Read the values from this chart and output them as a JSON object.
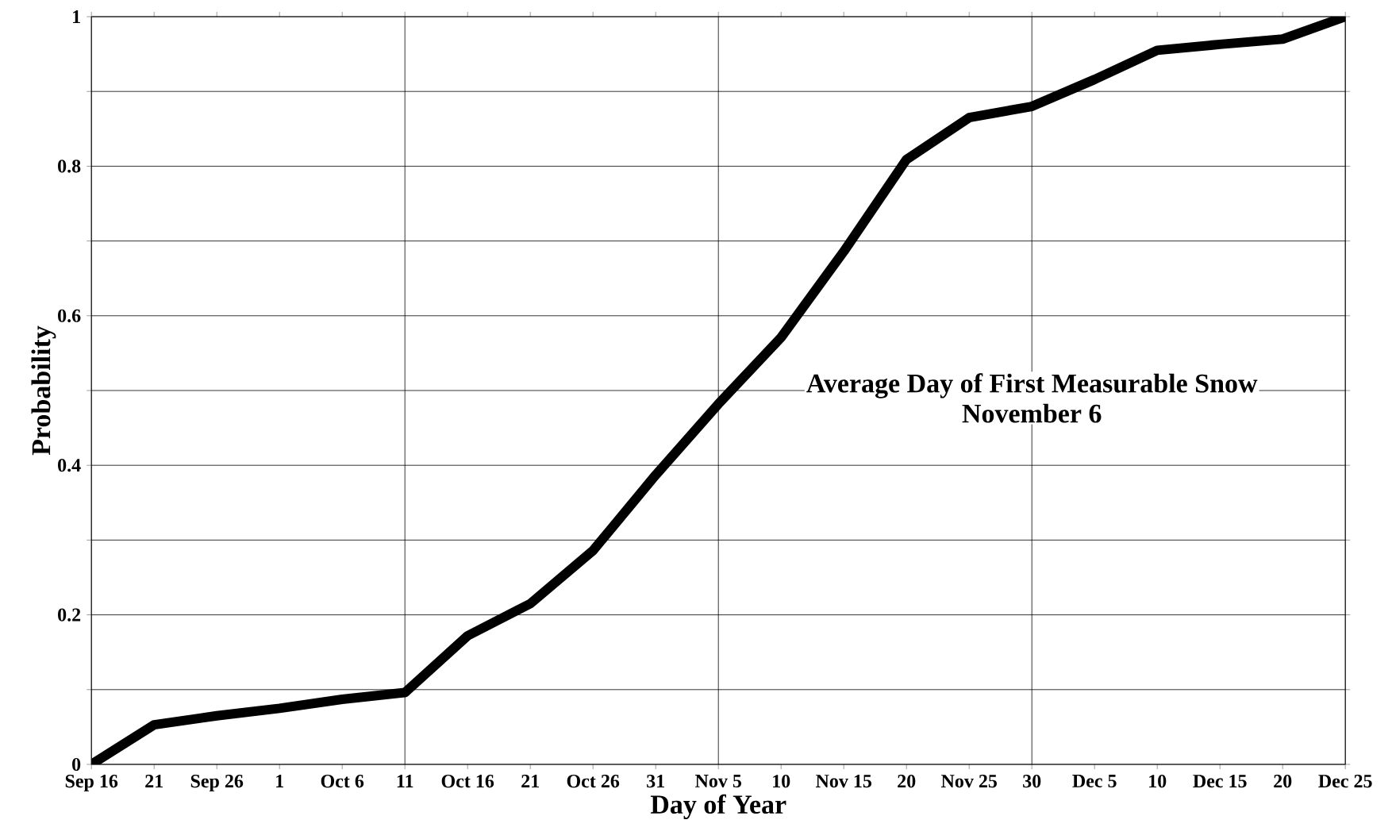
{
  "chart_data": {
    "type": "line",
    "xlabel": "Day of Year",
    "ylabel": "Probability",
    "categories": [
      "Sep 16",
      "21",
      "Sep 26",
      "1",
      "Oct 6",
      "11",
      "Oct 16",
      "21",
      "Oct 26",
      "31",
      "Nov 5",
      "10",
      "Nov 15",
      "20",
      "Nov 25",
      "30",
      "Dec 5",
      "10",
      "Dec 15",
      "20",
      "Dec 25"
    ],
    "series": [
      {
        "color": "#000000",
        "values": [
          0,
          0.053,
          0.065,
          0.075,
          0.087,
          0.096,
          0.172,
          0.215,
          0.286,
          0.387,
          0.482,
          0.571,
          0.686,
          0.809,
          0.865,
          0.88,
          0.916,
          0.955,
          0.963,
          0.97,
          1
        ]
      }
    ],
    "ylim": [
      0,
      1
    ],
    "yticks": [
      0,
      {
        "value": 0.1,
        "label": null
      },
      0.2,
      {
        "value": 0.3,
        "label": null
      },
      0.4,
      {
        "value": 0.5,
        "label": null
      },
      0.6,
      {
        "value": 0.7,
        "label": null
      },
      0.8,
      {
        "value": 0.9,
        "label": null
      },
      1
    ],
    "grid": true,
    "marker": "none",
    "line_style": "solid",
    "annotations": [
      "Average Day of First Measurable Snow",
      "November 6"
    ]
  }
}
